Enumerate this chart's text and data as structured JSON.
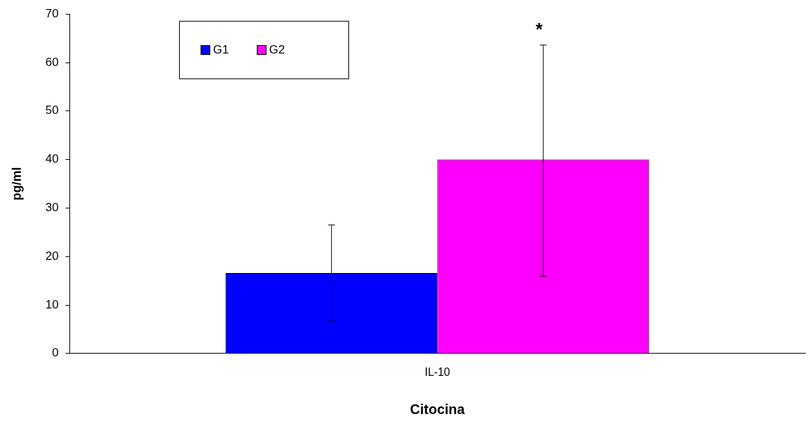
{
  "chart_data": {
    "type": "bar",
    "xlabel": "Citocina",
    "ylabel": "pg/ml",
    "categories": [
      "IL-10"
    ],
    "series": [
      {
        "name": "G1",
        "color": "#0000ff",
        "values": [
          16.6
        ],
        "errors": [
          [
            6.7,
            26.5
          ]
        ]
      },
      {
        "name": "G2",
        "color": "#ff00ff",
        "values": [
          40
        ],
        "errors": [
          [
            15.9,
            63.6
          ]
        ]
      }
    ],
    "ylim": [
      0,
      70
    ],
    "yticks": [
      0,
      10,
      20,
      30,
      40,
      50,
      60,
      70
    ],
    "grid": false,
    "legend": "top left",
    "annotations": [
      "*"
    ]
  }
}
